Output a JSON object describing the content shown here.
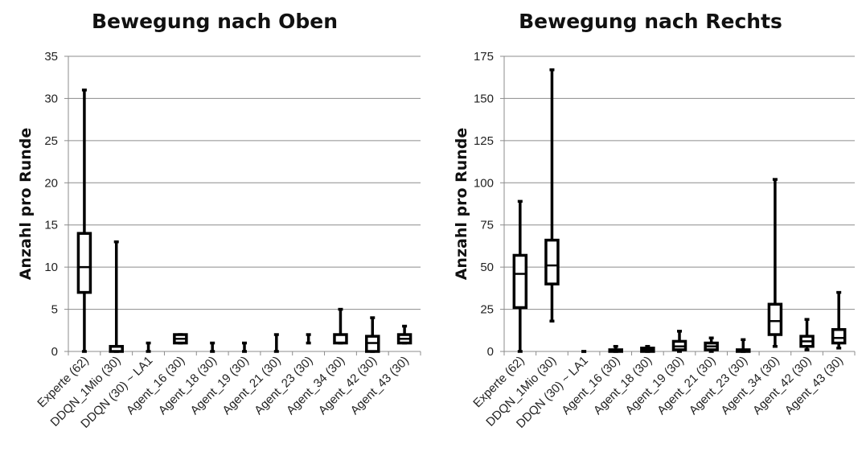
{
  "chart_data": [
    {
      "type": "boxplot",
      "title": "Bewegung nach Oben",
      "ylabel": "Anzahl pro Runde",
      "xlabel": "",
      "ylim": [
        0,
        35
      ],
      "yticks": [
        0,
        5,
        10,
        15,
        20,
        25,
        30,
        35
      ],
      "grid": true,
      "categories": [
        "Experte (62)",
        "DDQN_1Mio (30)",
        "DDQN (30) ~ LA1",
        "Agent_16 (30)",
        "Agent_18 (30)",
        "Agent_19 (30)",
        "Agent_21 (30)",
        "Agent_23 (30)",
        "Agent_34 (30)",
        "Agent_42 (30)",
        "Agent_43 (30)"
      ],
      "boxes": [
        {
          "min": 0,
          "q1": 7,
          "median": 10,
          "q3": 14,
          "max": 31
        },
        {
          "min": 0,
          "q1": 0,
          "median": 0,
          "q3": 0.6,
          "max": 13
        },
        {
          "min": 0,
          "q1": 0,
          "median": 0,
          "q3": 0,
          "max": 1
        },
        {
          "min": 1,
          "q1": 1,
          "median": 1.5,
          "q3": 2,
          "max": 2
        },
        {
          "min": 0,
          "q1": 0,
          "median": 0,
          "q3": 0,
          "max": 1
        },
        {
          "min": 0,
          "q1": 0,
          "median": 0,
          "q3": 0,
          "max": 1
        },
        {
          "min": 0,
          "q1": 0,
          "median": 0,
          "q3": 0,
          "max": 2
        },
        {
          "min": 1,
          "q1": 1,
          "median": 1,
          "q3": 1,
          "max": 2
        },
        {
          "min": 1,
          "q1": 1,
          "median": 1,
          "q3": 2,
          "max": 5
        },
        {
          "min": 0,
          "q1": 0,
          "median": 1,
          "q3": 1.8,
          "max": 4
        },
        {
          "min": 1,
          "q1": 1,
          "median": 1.5,
          "q3": 2,
          "max": 3
        }
      ]
    },
    {
      "type": "boxplot",
      "title": "Bewegung nach Rechts",
      "ylabel": "Anzahl pro Runde",
      "xlabel": "",
      "ylim": [
        0,
        175
      ],
      "yticks": [
        0,
        25,
        50,
        75,
        100,
        125,
        150,
        175
      ],
      "grid": true,
      "categories": [
        "Experte (62)",
        "DDQN_1Mio (30)",
        "DDQN (30) ~ LA1",
        "Agent_16 (30)",
        "Agent_18 (30)",
        "Agent_19 (30)",
        "Agent_21 (30)",
        "Agent_23 (30)",
        "Agent_34 (30)",
        "Agent_42 (30)",
        "Agent_43 (30)"
      ],
      "boxes": [
        {
          "min": 0,
          "q1": 26,
          "median": 46,
          "q3": 57,
          "max": 89
        },
        {
          "min": 18,
          "q1": 40,
          "median": 51,
          "q3": 66,
          "max": 167
        },
        {
          "min": 0,
          "q1": 0,
          "median": 0,
          "q3": 0,
          "max": 0
        },
        {
          "min": 0,
          "q1": 0,
          "median": 0,
          "q3": 1,
          "max": 3
        },
        {
          "min": 0,
          "q1": 0,
          "median": 1,
          "q3": 2,
          "max": 3
        },
        {
          "min": 0,
          "q1": 1,
          "median": 3,
          "q3": 6,
          "max": 12
        },
        {
          "min": 0,
          "q1": 1,
          "median": 3,
          "q3": 5,
          "max": 8
        },
        {
          "min": 0,
          "q1": 0,
          "median": 1,
          "q3": 1,
          "max": 7
        },
        {
          "min": 3,
          "q1": 10,
          "median": 18,
          "q3": 28,
          "max": 102
        },
        {
          "min": 1,
          "q1": 3,
          "median": 6,
          "q3": 9,
          "max": 19
        },
        {
          "min": 2,
          "q1": 5,
          "median": 8,
          "q3": 13,
          "max": 35
        }
      ]
    }
  ]
}
